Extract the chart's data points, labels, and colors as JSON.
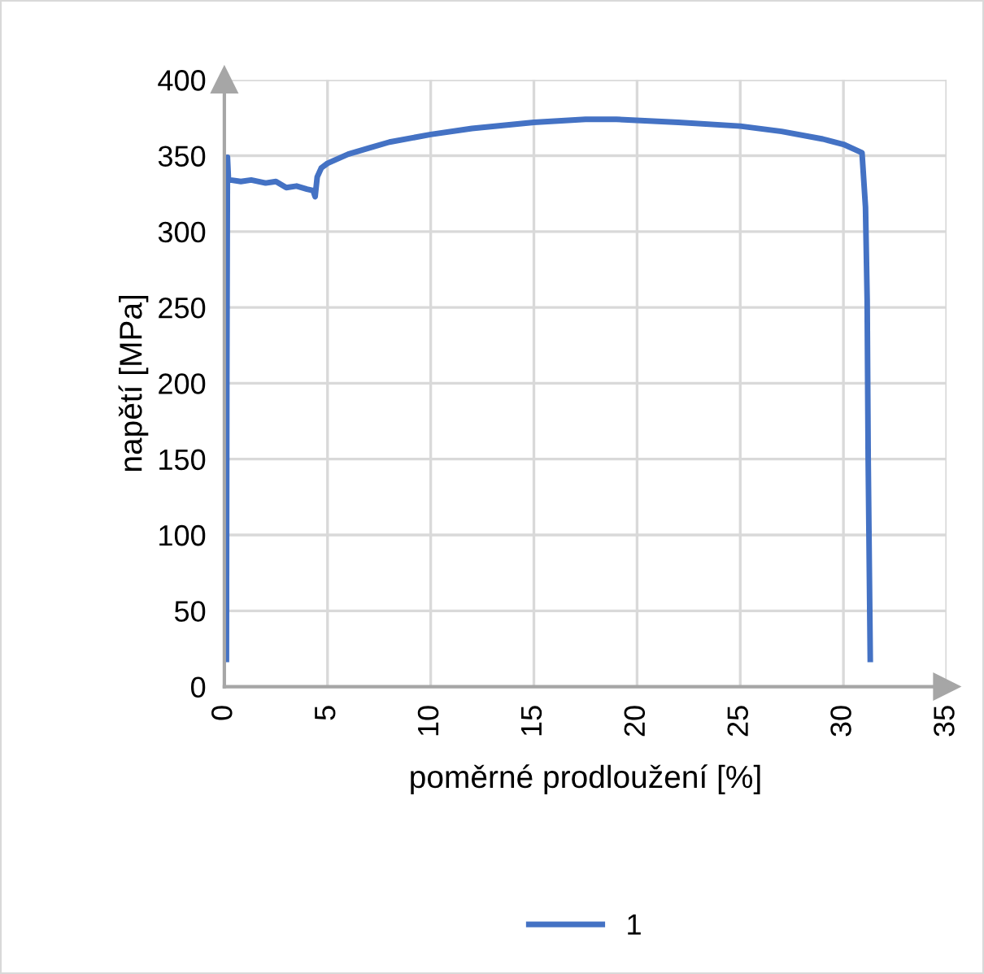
{
  "chart_data": {
    "type": "line",
    "xlabel": "poměrné prodloužení [%]",
    "ylabel": "napětí [MPa]",
    "xlim": [
      0,
      35
    ],
    "xticks": [
      0,
      5,
      10,
      15,
      20,
      25,
      30,
      35
    ],
    "ylim": [
      0,
      400
    ],
    "yticks": [
      0,
      50,
      100,
      150,
      200,
      250,
      300,
      350,
      400
    ],
    "grid": true,
    "legend": "bottom",
    "marker": "none",
    "line_style": "solid",
    "series": [
      {
        "name": "1",
        "color": "#4472c4",
        "x": [
          0.1,
          0.12,
          0.15,
          0.2,
          0.3,
          0.8,
          1.3,
          2,
          2.5,
          3,
          3.5,
          4,
          4.3,
          4.4,
          4.5,
          4.7,
          5,
          6,
          7,
          8,
          10,
          12,
          15,
          17.5,
          19,
          22,
          25,
          27,
          29,
          30,
          30.9,
          31.07,
          31.15,
          31.2,
          31.3
        ],
        "values": [
          18,
          200,
          349,
          334,
          334,
          333,
          334,
          332,
          333,
          329,
          330,
          328,
          327,
          323,
          336,
          342,
          345,
          351,
          355,
          359,
          364,
          368,
          372,
          374,
          374,
          372,
          369.5,
          366,
          361,
          357.5,
          352,
          316,
          255,
          150,
          18
        ]
      }
    ]
  }
}
